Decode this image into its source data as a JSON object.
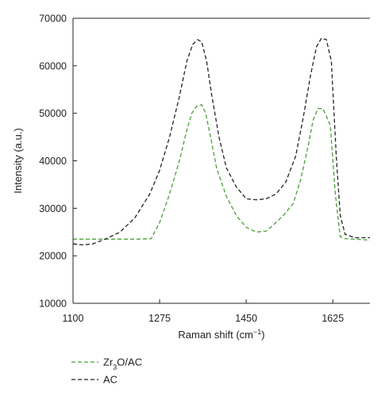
{
  "chart_data": {
    "type": "line",
    "xlabel": "Raman shift (cm",
    "xlabel_sup": "−1",
    "xlabel_end": ")",
    "ylabel": "Intensity (a.u.)",
    "xlim": [
      1100,
      1700
    ],
    "ylim": [
      10000,
      70000
    ],
    "xticks": [
      1100,
      1275,
      1450,
      1625
    ],
    "xtick_labels": [
      "1100",
      "1275",
      "1450",
      "1625"
    ],
    "yticks": [
      10000,
      20000,
      30000,
      40000,
      50000,
      60000,
      70000
    ],
    "ytick_labels": [
      "10000",
      "20000",
      "30000",
      "40000",
      "50000",
      "60000",
      "70000"
    ],
    "grid": false,
    "legend_placement": "bottom-left (below plot)",
    "series": [
      {
        "name": "Zr3O/AC",
        "legend": {
          "pre": "Zr",
          "sub": "3",
          "post": "O/AC"
        },
        "color": "#4a9e3a",
        "dash": "dashed",
        "x": [
          1100,
          1130,
          1160,
          1200,
          1230,
          1258,
          1275,
          1295,
          1315,
          1330,
          1340,
          1350,
          1360,
          1368,
          1378,
          1390,
          1410,
          1430,
          1450,
          1470,
          1490,
          1505,
          1525,
          1545,
          1560,
          1575,
          1585,
          1595,
          1605,
          1620,
          1630,
          1640,
          1650,
          1670,
          1700
        ],
        "y": [
          23500,
          23500,
          23500,
          23500,
          23500,
          23600,
          27000,
          33000,
          40000,
          46500,
          50000,
          51500,
          51800,
          50000,
          45000,
          38500,
          32500,
          28500,
          26000,
          25000,
          25200,
          26500,
          28500,
          31000,
          36000,
          43000,
          48500,
          51000,
          51000,
          47500,
          33000,
          24000,
          23600,
          23500,
          23300
        ]
      },
      {
        "name": "AC",
        "legend": {
          "pre": "AC",
          "sub": "",
          "post": ""
        },
        "color": "#222222",
        "dash": "dashed",
        "x": [
          1100,
          1120,
          1140,
          1165,
          1195,
          1225,
          1255,
          1275,
          1295,
          1315,
          1330,
          1342,
          1352,
          1360,
          1370,
          1380,
          1395,
          1410,
          1430,
          1450,
          1470,
          1490,
          1510,
          1530,
          1550,
          1565,
          1580,
          1592,
          1602,
          1612,
          1622,
          1632,
          1640,
          1650,
          1670,
          1700
        ],
        "y": [
          22500,
          22300,
          22500,
          23500,
          25000,
          28000,
          33000,
          38000,
          45000,
          53500,
          61000,
          64500,
          65500,
          65000,
          61000,
          54000,
          45000,
          38500,
          34500,
          32000,
          31800,
          32000,
          33000,
          35500,
          41000,
          49000,
          58000,
          64000,
          65800,
          65500,
          61000,
          41000,
          28500,
          24500,
          23800,
          23800
        ]
      }
    ]
  }
}
